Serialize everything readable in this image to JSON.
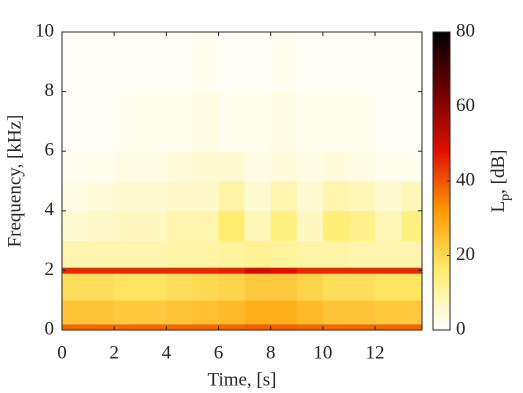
{
  "chart_data": {
    "type": "heatmap",
    "x_label": "Time, [s]",
    "y_label": "Frequency, [kHz]",
    "colorbar_label": {
      "main": "L",
      "sub": "p",
      "rest": ", [dB]"
    },
    "x_bins": [
      0,
      1,
      2,
      3,
      4,
      5,
      6,
      7,
      8,
      9,
      10,
      11,
      12,
      13,
      13.8
    ],
    "y_bins": [
      0,
      0.2,
      1,
      1.9,
      2.1,
      3,
      4,
      5,
      6,
      8,
      10
    ],
    "values": [
      [
        38,
        38,
        38,
        38,
        38,
        38,
        38,
        39,
        39,
        38,
        38,
        38,
        38,
        38
      ],
      [
        24,
        24,
        23,
        23,
        24,
        25,
        26,
        28,
        28,
        26,
        24,
        24,
        23,
        23
      ],
      [
        19,
        19,
        18,
        18,
        19,
        20,
        21,
        23,
        23,
        21,
        19,
        19,
        18,
        18
      ],
      [
        45,
        45,
        45,
        45,
        45,
        45,
        46,
        50,
        48,
        45,
        45,
        45,
        45,
        45
      ],
      [
        9,
        9,
        9,
        9,
        10,
        10,
        11,
        12,
        11,
        10,
        10,
        9,
        9,
        9
      ],
      [
        5,
        6,
        7,
        7,
        9,
        9,
        16,
        8,
        14,
        7,
        15,
        13,
        8,
        14
      ],
      [
        3,
        4,
        5,
        5,
        6,
        6,
        10,
        5,
        9,
        5,
        9,
        8,
        5,
        8
      ],
      [
        2,
        2,
        3,
        3,
        4,
        5,
        5,
        3,
        4,
        3,
        4,
        3,
        2,
        2
      ],
      [
        1,
        1,
        2,
        2,
        2,
        3,
        2,
        2,
        3,
        2,
        2,
        2,
        1,
        1
      ],
      [
        1,
        1,
        1,
        1,
        1,
        2,
        1,
        1,
        2,
        1,
        1,
        1,
        1,
        1
      ]
    ],
    "xlim": [
      0,
      13.8
    ],
    "xticks": [
      0,
      2,
      4,
      6,
      8,
      10,
      12
    ],
    "ylim": [
      0,
      10
    ],
    "yticks": [
      0,
      2,
      4,
      6,
      8,
      10
    ],
    "zlim": [
      0,
      80
    ],
    "zticks": [
      0,
      20,
      40,
      60,
      80
    ],
    "colormap": [
      "#ffffff",
      "#ffee70",
      "#ff9a00",
      "#e01000",
      "#700000",
      "#000000"
    ]
  }
}
